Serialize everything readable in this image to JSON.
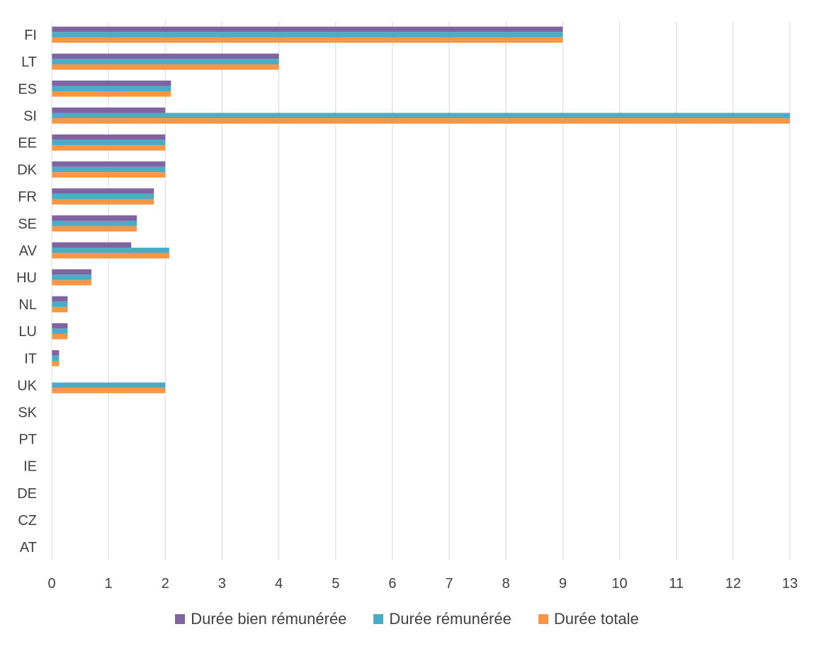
{
  "chart_data": {
    "type": "bar",
    "orientation": "horizontal",
    "categories": [
      "FI",
      "LT",
      "ES",
      "SI",
      "EE",
      "DK",
      "FR",
      "SE",
      "AV",
      "HU",
      "NL",
      "LU",
      "IT",
      "UK",
      "SK",
      "PT",
      "IE",
      "DE",
      "CZ",
      "AT"
    ],
    "series": [
      {
        "name": "Durée bien rémunérée",
        "color": "#8064a2",
        "values": [
          9,
          4,
          2.1,
          2,
          2,
          2,
          1.8,
          1.5,
          1.4,
          0.7,
          0.28,
          0.28,
          0.13,
          0,
          0,
          0,
          0,
          0,
          0,
          0
        ]
      },
      {
        "name": "Durée rémunérée",
        "color": "#4bacc6",
        "values": [
          9,
          4,
          2.1,
          13,
          2,
          2,
          1.8,
          1.5,
          2.07,
          0.7,
          0.28,
          0.28,
          0.13,
          2,
          0,
          0,
          0,
          0,
          0,
          0
        ]
      },
      {
        "name": "Durée totale",
        "color": "#f79646",
        "values": [
          9,
          4,
          2.1,
          13,
          2,
          2,
          1.8,
          1.5,
          2.07,
          0.7,
          0.28,
          0.28,
          0.13,
          2,
          0,
          0,
          0,
          0,
          0,
          0
        ]
      }
    ],
    "xticks": [
      "0",
      "1",
      "2",
      "3",
      "4",
      "5",
      "6",
      "7",
      "8",
      "9",
      "10",
      "11",
      "12",
      "13"
    ],
    "xlim": [
      0,
      13
    ],
    "grid": true,
    "legend_position": "bottom",
    "title": "",
    "xlabel": "",
    "ylabel": ""
  }
}
